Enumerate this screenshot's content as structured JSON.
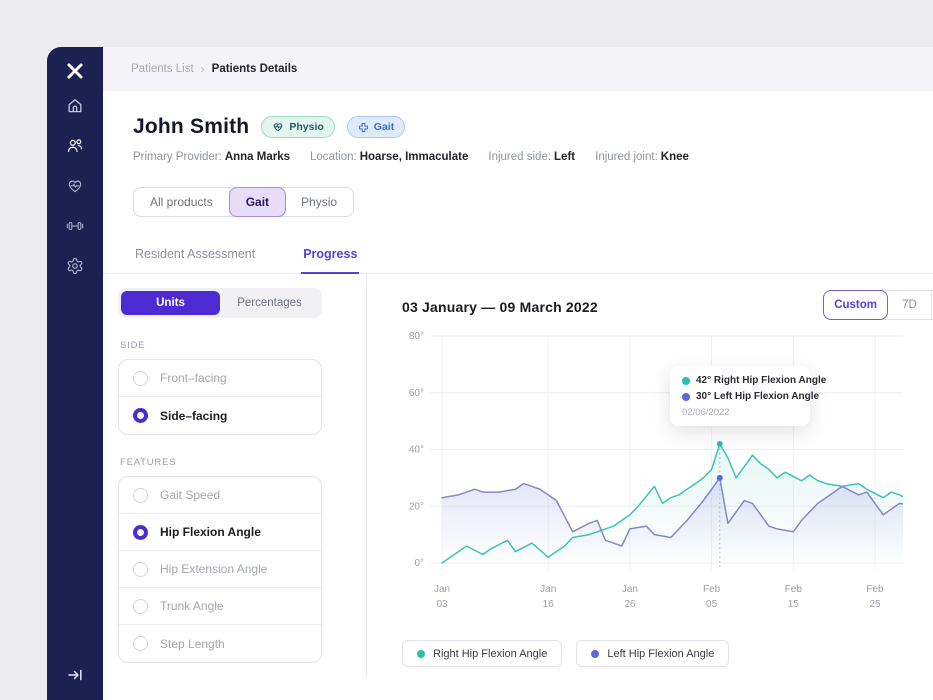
{
  "colors": {
    "sidebar_bg": "#1b2150",
    "accent_indigo": "#4c2bd3",
    "accent_purple": "#5b3fd2",
    "teal_series": "#2bbfae",
    "purple_series": "#8289cb",
    "purple_dot": "#5b68df"
  },
  "sidebar": {
    "icons": [
      "logo-x",
      "home",
      "patients",
      "health-heart",
      "exercise-dumbbell",
      "settings-gear",
      "collapse"
    ]
  },
  "breadcrumb": {
    "parent": "Patients List",
    "separator": "›",
    "current": "Patients Details"
  },
  "patient": {
    "name": "John Smith",
    "badges": [
      {
        "label": "Physio",
        "icon": "heart-pulse-icon"
      },
      {
        "label": "Gait",
        "icon": "medical-cross-icon"
      }
    ],
    "fields": [
      {
        "label": "Primary Provider:",
        "value": "Anna Marks"
      },
      {
        "label": "Location:",
        "value": "Hoarse, Immaculate"
      },
      {
        "label": "Injured side:",
        "value": "Left"
      },
      {
        "label": "Injured joint:",
        "value": "Knee"
      }
    ]
  },
  "product_filter": {
    "options": [
      "All products",
      "Gait",
      "Physio"
    ],
    "selected": "Gait"
  },
  "tabs": {
    "items": [
      "Resident Assessment",
      "Progress"
    ],
    "selected": "Progress"
  },
  "unit_toggle": {
    "options": [
      "Units",
      "Percentages"
    ],
    "selected": "Units"
  },
  "side_filter": {
    "label": "SIDE",
    "options": [
      {
        "label": "Front–facing",
        "selected": false
      },
      {
        "label": "Side–facing",
        "selected": true
      }
    ]
  },
  "features_filter": {
    "label": "FEATURES",
    "options": [
      {
        "label": "Gait Speed",
        "selected": false
      },
      {
        "label": "Hip Flexion Angle",
        "selected": true
      },
      {
        "label": "Hip Extension Angle",
        "selected": false
      },
      {
        "label": "Trunk Angle",
        "selected": false
      },
      {
        "label": "Step Length",
        "selected": false
      }
    ]
  },
  "chart_header": {
    "title": "03 January — 09 March 2022",
    "range_options": [
      "Custom",
      "7D"
    ],
    "selected": "Custom"
  },
  "chart_data": {
    "type": "line",
    "title": "03 January — 09 March 2022",
    "ylabel": "degrees",
    "ylim": [
      0,
      80
    ],
    "grid": true,
    "yticks": [
      {
        "v": 0,
        "label": "0°"
      },
      {
        "v": 20,
        "label": "20°"
      },
      {
        "v": 40,
        "label": "40°"
      },
      {
        "v": 60,
        "label": "60°"
      },
      {
        "v": 80,
        "label": "80°"
      }
    ],
    "xticks": [
      {
        "d": 0,
        "line1": "Jan",
        "line2": "03"
      },
      {
        "d": 13,
        "line1": "Jan",
        "line2": "16"
      },
      {
        "d": 23,
        "line1": "Jan",
        "line2": "26"
      },
      {
        "d": 33,
        "line1": "Feb",
        "line2": "05"
      },
      {
        "d": 43,
        "line1": "Feb",
        "line2": "15"
      },
      {
        "d": 53,
        "line1": "Feb",
        "line2": "25"
      }
    ],
    "series": [
      {
        "name": "Right Hip Flexion Angle",
        "color": "#3cc4b4",
        "fill": "rgba(80,200,185,0.14)",
        "points": [
          [
            0,
            0
          ],
          [
            2,
            4
          ],
          [
            3,
            6
          ],
          [
            5,
            3
          ],
          [
            6,
            5
          ],
          [
            8,
            8
          ],
          [
            9,
            4
          ],
          [
            11,
            7
          ],
          [
            13,
            2
          ],
          [
            15,
            6
          ],
          [
            16,
            9
          ],
          [
            18,
            10
          ],
          [
            19,
            11
          ],
          [
            21,
            13
          ],
          [
            23,
            17
          ],
          [
            24,
            20
          ],
          [
            26,
            27
          ],
          [
            27,
            21
          ],
          [
            28,
            23
          ],
          [
            29,
            24
          ],
          [
            31,
            28
          ],
          [
            32,
            30
          ],
          [
            33,
            33
          ],
          [
            34,
            42
          ],
          [
            35,
            37
          ],
          [
            36,
            30
          ],
          [
            38,
            38
          ],
          [
            39,
            35
          ],
          [
            40,
            33
          ],
          [
            41,
            30
          ],
          [
            42,
            32
          ],
          [
            44,
            29
          ],
          [
            45,
            31
          ],
          [
            46,
            29
          ],
          [
            47,
            28
          ],
          [
            49,
            27
          ],
          [
            51,
            28
          ],
          [
            52,
            26
          ],
          [
            54,
            23
          ],
          [
            55,
            25
          ],
          [
            56,
            24
          ],
          [
            58,
            21
          ]
        ]
      },
      {
        "name": "Left Hip Flexion Angle",
        "color": "#8289cb",
        "fill": "rgba(125,135,212,0.22)",
        "points": [
          [
            0,
            23
          ],
          [
            2,
            24
          ],
          [
            4,
            26
          ],
          [
            5,
            25
          ],
          [
            7,
            25
          ],
          [
            9,
            26
          ],
          [
            10,
            28
          ],
          [
            12,
            26
          ],
          [
            13,
            24
          ],
          [
            14,
            22
          ],
          [
            16,
            11
          ],
          [
            18,
            14
          ],
          [
            19,
            15
          ],
          [
            20,
            8
          ],
          [
            21,
            7
          ],
          [
            22,
            6
          ],
          [
            23,
            12
          ],
          [
            25,
            13
          ],
          [
            26,
            10
          ],
          [
            28,
            9
          ],
          [
            30,
            15
          ],
          [
            32,
            22
          ],
          [
            34,
            30
          ],
          [
            35,
            14
          ],
          [
            37,
            22
          ],
          [
            38,
            21
          ],
          [
            40,
            13
          ],
          [
            41,
            12
          ],
          [
            43,
            11
          ],
          [
            44,
            15
          ],
          [
            46,
            21
          ],
          [
            47,
            23
          ],
          [
            49,
            27
          ],
          [
            51,
            24
          ],
          [
            52,
            25
          ],
          [
            54,
            17
          ],
          [
            56,
            21
          ],
          [
            58,
            20
          ]
        ]
      }
    ],
    "highlight": {
      "day": 34,
      "date": "02/06/2022",
      "points": [
        {
          "value": 42,
          "color": "#2bbfae"
        },
        {
          "value": 30,
          "color": "#5b68df"
        }
      ]
    }
  },
  "tooltip": {
    "rows": [
      {
        "text": "42° Right Hip Flexion Angle"
      },
      {
        "text": "30° Left Hip Flexion Angle"
      }
    ],
    "date": "02/06/2022"
  },
  "legend": [
    {
      "label": "Right Hip Flexion Angle"
    },
    {
      "label": "Left Hip Flexion Angle"
    }
  ]
}
